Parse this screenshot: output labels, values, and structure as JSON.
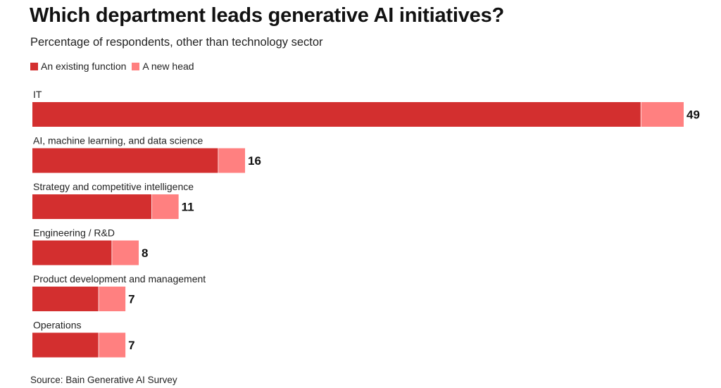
{
  "chart_data": {
    "type": "bar",
    "orientation": "horizontal",
    "stacked": true,
    "title": "Which department leads generative AI initiatives?",
    "subtitle": "Percentage of respondents, other than technology sector",
    "categories": [
      "IT",
      "AI, machine learning, and data science",
      "Strategy and competitive intelligence",
      "Engineering / R&D",
      "Product development and management",
      "Operations"
    ],
    "series": [
      {
        "name": "An existing function",
        "color": "#d32f2f",
        "values": [
          45.8,
          14,
          9,
          6,
          5,
          5
        ]
      },
      {
        "name": "A new head",
        "color": "#ff8080",
        "values": [
          3.2,
          2,
          2,
          2,
          2,
          2
        ]
      }
    ],
    "totals": [
      49,
      16,
      11,
      8,
      7,
      7
    ],
    "total_labels": [
      "49",
      "16",
      "11",
      "8",
      "7",
      "7"
    ],
    "xlim": [
      0,
      49
    ],
    "grid": false,
    "legend_position": "top-left",
    "source": "Source: Bain Generative AI Survey"
  }
}
